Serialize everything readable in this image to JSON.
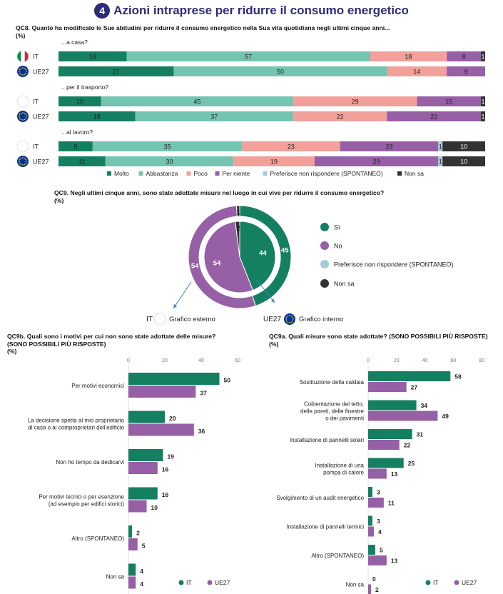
{
  "header": {
    "number": "4",
    "title": "Azioni intraprese per ridurre il consumo energetico"
  },
  "qc8": {
    "question": "QC8. Quanto ha modificato le Sue abitudini per ridurre il consumo energetico nella Sua vita quotidiana negli ultimi cinque anni...",
    "unit": "(%)"
  },
  "qc9": {
    "question": "QC9. Negli ultimi cinque anni, sono state adottate misure nel luogo in cui vive per ridurre il consumo energetico?",
    "unit": "(%)",
    "outer_label_country": "IT",
    "outer_label_text": "Grafico esterno",
    "inner_label_country": "UE27",
    "inner_label_text": "Grafico interno"
  },
  "qc9b": {
    "question": "QC9b. Quali sono i motivi per cui non sono state adottate delle misure?",
    "note": "(SONO POSSIBILI PIÙ RISPOSTE)",
    "unit": "(%)"
  },
  "qc9a": {
    "question": "QC9a. Quali misure sono state adottate? (SONO POSSIBILI PIÙ RISPOSTE)",
    "unit": "(%)"
  },
  "colors": {
    "molto": "#157f62",
    "abbastanza": "#74c4b2",
    "poco": "#f3a09a",
    "per_niente": "#965fa6",
    "preferisce": "#a4ccd8",
    "non_sa": "#333333",
    "it": "#157f62",
    "ue27": "#965fa6",
    "title": "#2d2a7a"
  },
  "chart_data": [
    {
      "type": "bar",
      "orientation": "horizontal",
      "stacked": true,
      "id": "qc8",
      "legend": [
        "Molto",
        "Abbastanza",
        "Poco",
        "Per niente",
        "Preferisce non rispondere (SPONTANEO)",
        "Non sa"
      ],
      "legend_position": "bottom",
      "groups": [
        {
          "label": "...a casa?",
          "rows": [
            {
              "country": "IT",
              "values": [
                16,
                57,
                18,
                8,
                0,
                1
              ]
            },
            {
              "country": "UE27",
              "values": [
                27,
                50,
                14,
                9,
                0,
                0
              ]
            }
          ]
        },
        {
          "label": "...per il trasporto?",
          "rows": [
            {
              "country": "IT",
              "values": [
                10,
                45,
                29,
                15,
                0,
                1
              ]
            },
            {
              "country": "UE27",
              "values": [
                18,
                37,
                22,
                22,
                0,
                1
              ]
            }
          ]
        },
        {
          "label": "...al lavoro?",
          "rows": [
            {
              "country": "IT",
              "values": [
                8,
                35,
                23,
                23,
                1,
                10
              ]
            },
            {
              "country": "UE27",
              "values": [
                11,
                30,
                19,
                29,
                1,
                10
              ]
            }
          ]
        }
      ]
    },
    {
      "type": "pie",
      "variant": "double-donut",
      "id": "qc9",
      "categories": [
        "Sì",
        "No",
        "Preferisce non rispondere (SPONTANEO)",
        "Non sa"
      ],
      "outer": {
        "country": "IT",
        "values": [
          45,
          54,
          0,
          1
        ]
      },
      "inner": {
        "country": "UE27",
        "values": [
          44,
          54,
          0,
          2
        ]
      },
      "legend_position": "right"
    },
    {
      "type": "bar",
      "orientation": "horizontal",
      "id": "qc9b",
      "xlim": [
        0,
        60
      ],
      "ticks": [
        "0",
        "20",
        "40",
        "60"
      ],
      "categories": [
        "Per motivi economici",
        "La decisione spetta al mio proprietario di casa o ai comproprietari dell'edificio",
        "Non ho tempo da dedicarvi",
        "Per motivi tecnici o per esenzione (ad esempio per edifici storici)",
        "Altro (SPONTANEO)",
        "Non sa"
      ],
      "category_lines": [
        [
          "Per motivi economici"
        ],
        [
          "La decisione spetta al mio proprietario",
          "di casa o ai comproprietari dell'edificio"
        ],
        [
          "Non ho tempo da dedicarvi"
        ],
        [
          "Per motivi tecnici o per esenzione",
          "(ad esempio per edifici storici)"
        ],
        [
          "Altro (SPONTANEO)"
        ],
        [
          "Non sa"
        ]
      ],
      "series": [
        {
          "name": "IT",
          "values": [
            50,
            20,
            19,
            16,
            2,
            4
          ]
        },
        {
          "name": "UE27",
          "values": [
            37,
            36,
            16,
            10,
            5,
            4
          ]
        }
      ],
      "legend_position": "bottom-right"
    },
    {
      "type": "bar",
      "orientation": "horizontal",
      "id": "qc9a",
      "xlim": [
        0,
        80
      ],
      "ticks": [
        "0",
        "20",
        "40",
        "60",
        "80"
      ],
      "categories": [
        "Sostituzione della caldaia",
        "Coibentazione del tetto, delle pareti, delle finestre o dei pavimenti",
        "Installazione di pannelli solari",
        "Installazione di una pompa di calore",
        "Svolgimento di un audit energetico",
        "Installazione di pannelli termici",
        "Altro (SPONTANEO)",
        "Non sa"
      ],
      "category_lines": [
        [
          "Sostituzione della caldaia"
        ],
        [
          "Coibentazione del tetto,",
          "delle pareti, delle finestre",
          "o dei pavimenti"
        ],
        [
          "Installazione di pannelli solari"
        ],
        [
          "Installazione di una",
          "pompa di calore"
        ],
        [
          "Svolgimento di un audit energetico"
        ],
        [
          "Installazione di pannelli termici"
        ],
        [
          "Altro (SPONTANEO)"
        ],
        [
          "Non sa"
        ]
      ],
      "series": [
        {
          "name": "IT",
          "values": [
            58,
            34,
            31,
            25,
            3,
            3,
            5,
            0
          ]
        },
        {
          "name": "UE27",
          "values": [
            27,
            49,
            22,
            13,
            11,
            4,
            13,
            2
          ]
        }
      ],
      "legend_position": "bottom-right"
    }
  ]
}
